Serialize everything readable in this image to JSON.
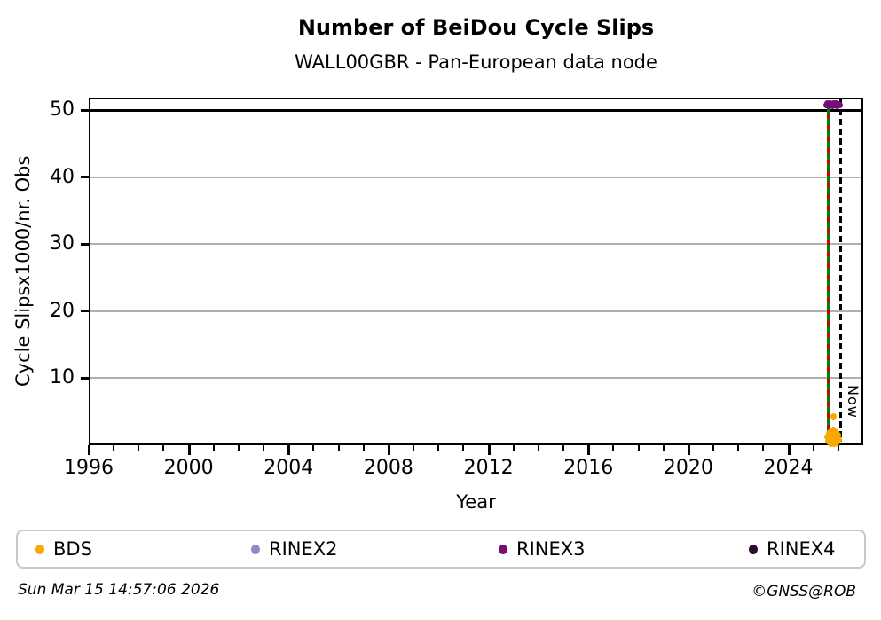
{
  "chart_data": {
    "type": "scatter",
    "title": "Number of BeiDou Cycle Slips",
    "subtitle": "WALL00GBR - Pan-European data node",
    "xlabel": "Year",
    "ylabel": "Cycle Slipsx1000/nr. Obs",
    "xlim": [
      1996,
      2027
    ],
    "ylim": [
      0,
      51.9
    ],
    "xticks_major": [
      1996,
      2000,
      2004,
      2008,
      2012,
      2016,
      2020,
      2024
    ],
    "xticks_minor_step": 1,
    "yticks": [
      10,
      20,
      30,
      40,
      50
    ],
    "grid": true,
    "grid_color": "#b0b0b0",
    "legend_position": "bottom",
    "hline": {
      "y": 50,
      "color": "#000000"
    },
    "event_line": {
      "x": 2025.6,
      "colors": [
        "#008000",
        "#cc0000"
      ],
      "style": "solid green with red dashes"
    },
    "now_line": {
      "x": 2026.08,
      "label": "Now",
      "style": "dashed",
      "color": "#000000"
    },
    "series": [
      {
        "name": "BDS",
        "color": "#f9a800",
        "points": [
          [
            2025.56,
            1.2
          ],
          [
            2025.6,
            0.6
          ],
          [
            2025.63,
            1.8
          ],
          [
            2025.66,
            0.4
          ],
          [
            2025.69,
            2.1
          ],
          [
            2025.72,
            1.0
          ],
          [
            2025.75,
            1.6
          ],
          [
            2025.78,
            0.5
          ],
          [
            2025.81,
            2.3
          ],
          [
            2025.84,
            1.3
          ],
          [
            2025.87,
            0.8
          ],
          [
            2025.9,
            1.9
          ],
          [
            2025.93,
            1.1
          ],
          [
            2025.96,
            0.5
          ],
          [
            2025.99,
            1.5
          ],
          [
            2026.02,
            0.9
          ],
          [
            2025.7,
            0.2
          ],
          [
            2025.85,
            0.2
          ],
          [
            2025.82,
            4.3
          ]
        ]
      },
      {
        "name": "RINEX2",
        "color": "#8f8bc9",
        "points": []
      },
      {
        "name": "RINEX3",
        "color": "#780d78",
        "points": [
          [
            2025.52,
            50.8
          ],
          [
            2025.57,
            51.0
          ],
          [
            2025.62,
            50.7
          ],
          [
            2025.67,
            51.1
          ],
          [
            2025.72,
            50.9
          ],
          [
            2025.77,
            50.6
          ],
          [
            2025.82,
            51.0
          ],
          [
            2025.87,
            50.8
          ],
          [
            2025.92,
            51.1
          ],
          [
            2025.97,
            50.7
          ],
          [
            2026.02,
            50.9
          ],
          [
            2026.06,
            50.8
          ]
        ]
      },
      {
        "name": "RINEX4",
        "color": "#2d0a2e",
        "points": []
      }
    ]
  },
  "footer": {
    "timestamp": "Sun Mar 15 14:57:06 2026",
    "credit": "©GNSS@ROB"
  }
}
